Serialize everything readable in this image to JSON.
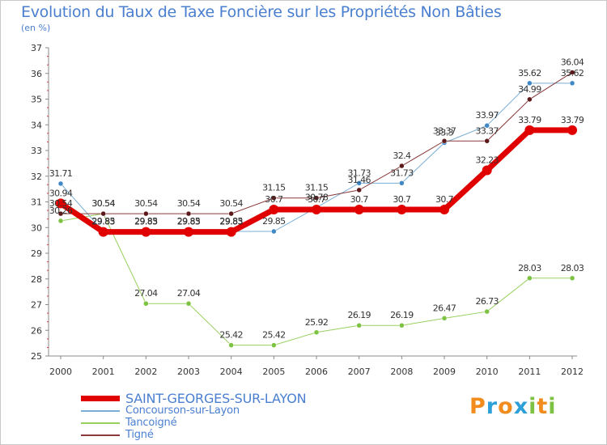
{
  "title": "Evolution du Taux de Taxe Foncière sur les Propriétés Non Bâties",
  "subtitle": "(en %)",
  "logo": {
    "text": "Proxiti",
    "letters": [
      "P",
      "r",
      "o",
      "x",
      "i",
      "t",
      "i"
    ],
    "colors": [
      "#f28c1e",
      "#2f9fd8",
      "#f28c1e",
      "#2f9fd8",
      "#7dc242",
      "#f28c1e",
      "#7dc242"
    ]
  },
  "chart_data": {
    "type": "line",
    "title": "Evolution du Taux de Taxe Foncière sur les Propriétés Non Bâties",
    "ylabel": "(en %)",
    "xlabel": "",
    "ylim": [
      25,
      37
    ],
    "yticks": [
      25,
      26,
      27,
      28,
      29,
      30,
      31,
      32,
      33,
      34,
      35,
      36,
      37
    ],
    "categories": [
      "2000",
      "2001",
      "2002",
      "2003",
      "2004",
      "2005",
      "2006",
      "2007",
      "2008",
      "2009",
      "2010",
      "2011",
      "2012"
    ],
    "grid": false,
    "series": [
      {
        "name": "Tancoigné",
        "color": "#99d060",
        "marker": "#7dc242",
        "width": 1,
        "values": [
          30.26,
          30.54,
          27.04,
          27.04,
          25.42,
          25.42,
          25.92,
          26.19,
          26.19,
          26.47,
          26.73,
          28.03,
          28.03
        ],
        "labels": [
          "30.26",
          "30.54",
          "27.04",
          "27.04",
          "25.42",
          "25.42",
          "25.92",
          "26.19",
          "26.19",
          "26.47",
          "26.73",
          "28.03",
          "28.03"
        ]
      },
      {
        "name": "Concourson-sur-Layon",
        "color": "#7aaed6",
        "marker": "#3f88c5",
        "width": 1,
        "values": [
          31.71,
          29.85,
          29.85,
          29.85,
          29.85,
          29.85,
          30.78,
          31.73,
          31.73,
          33.3,
          33.97,
          35.62,
          35.62
        ],
        "labels": [
          "31.71",
          "29.85",
          "29.85",
          "29.85",
          "29.85",
          "29.85",
          "30.78",
          "31.73",
          "31.73",
          "33.3",
          "33.97",
          "35.62",
          "35.62"
        ]
      },
      {
        "name": "Tigné",
        "color": "#8a3a3a",
        "marker": "#5c1a1a",
        "width": 1,
        "values": [
          30.54,
          30.54,
          30.54,
          30.54,
          30.54,
          31.15,
          31.15,
          31.46,
          32.4,
          33.37,
          33.37,
          34.99,
          36.04
        ],
        "labels": [
          "30.54",
          "30.54",
          "30.54",
          "30.54",
          "30.54",
          "31.15",
          "31.15",
          "31.46",
          "32.4",
          "33.37",
          "33.37",
          "34.99",
          "36.04"
        ]
      },
      {
        "name": "SAINT-GEORGES-SUR-LAYON",
        "color": "#e00000",
        "marker": "#e00000",
        "width": 7,
        "values": [
          30.94,
          29.83,
          29.83,
          29.83,
          29.83,
          30.7,
          30.7,
          30.7,
          30.7,
          30.7,
          32.23,
          33.79,
          33.79
        ],
        "labels": [
          "30.94",
          "29.83",
          "29.83",
          "29.83",
          "29.83",
          "30.7",
          "30.7",
          "30.7",
          "30.7",
          "30.7",
          "32.23",
          "33.79",
          "33.79"
        ]
      }
    ],
    "legend": [
      {
        "name": "SAINT-GEORGES-SUR-LAYON",
        "color": "#e00000",
        "size": "big"
      },
      {
        "name": "Concourson-sur-Layon",
        "color": "#7aaed6",
        "size": "normal"
      },
      {
        "name": "Tancoigné",
        "color": "#99d060",
        "size": "normal"
      },
      {
        "name": "Tigné",
        "color": "#8a3a3a",
        "size": "normal"
      }
    ],
    "legend_position": "bottom-left"
  }
}
